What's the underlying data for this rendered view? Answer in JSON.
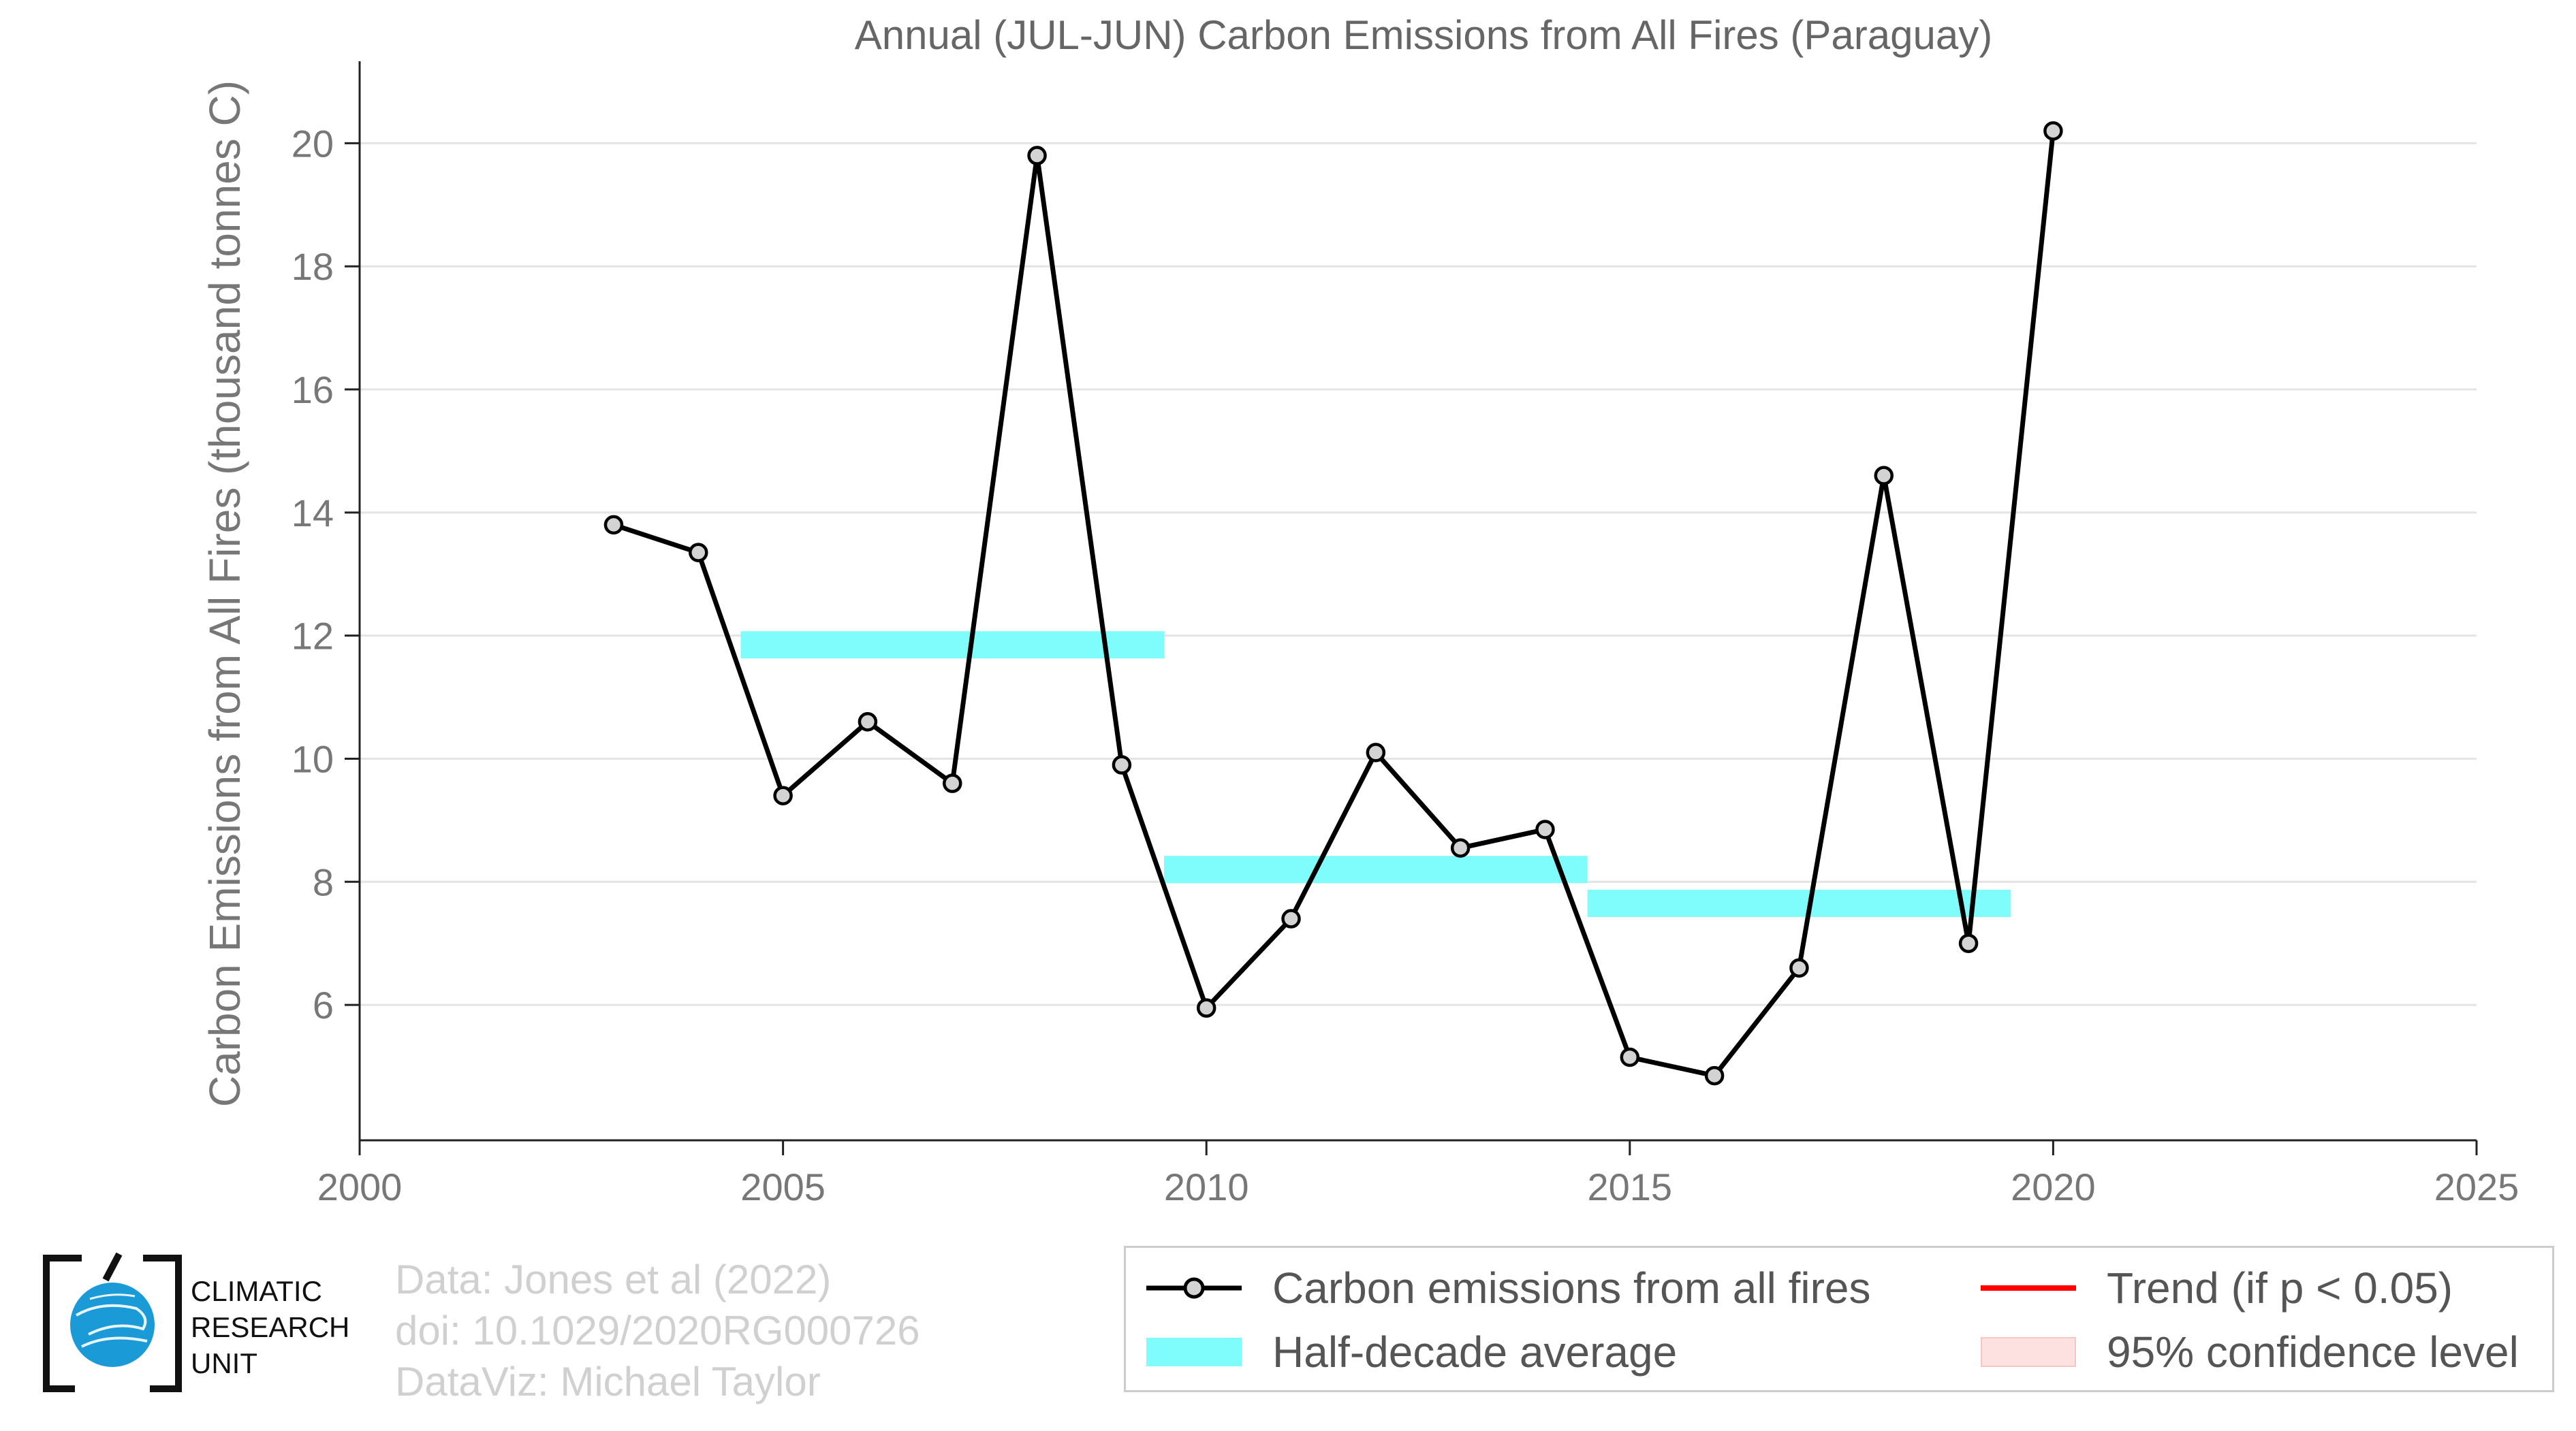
{
  "chart_data": {
    "type": "line",
    "title": "Annual (JUL-JUN) Carbon Emissions from All Fires (Paraguay)",
    "xlabel": "",
    "ylabel": "Carbon Emissions from All Fires (thousand tonnes C)",
    "xlim": [
      2000,
      2025
    ],
    "ylim": [
      3.8,
      21
    ],
    "xticks": [
      2000,
      2005,
      2010,
      2015,
      2020,
      2025
    ],
    "yticks": [
      6,
      8,
      10,
      12,
      14,
      16,
      18,
      20
    ],
    "grid": "horizontal",
    "series": [
      {
        "name": "Carbon emissions from all fires",
        "color": "#000000",
        "marker_color": "#d3d3d3",
        "x": [
          2003,
          2004,
          2005,
          2006,
          2007,
          2008,
          2009,
          2010,
          2011,
          2012,
          2013,
          2014,
          2015,
          2016,
          2017,
          2018,
          2019,
          2020
        ],
        "y": [
          13.8,
          13.35,
          9.4,
          10.6,
          9.6,
          19.8,
          9.9,
          5.95,
          7.4,
          10.1,
          8.55,
          8.85,
          5.15,
          4.85,
          6.6,
          14.6,
          7.0,
          20.2
        ]
      }
    ],
    "half_decade_average": {
      "name": "Half-decade average",
      "color": "#7ffcfc",
      "segments": [
        {
          "x0": 2004.5,
          "x1": 2009.5,
          "y": 11.85
        },
        {
          "x0": 2009.5,
          "x1": 2014.5,
          "y": 8.2
        },
        {
          "x0": 2014.5,
          "x1": 2019.5,
          "y": 7.65
        }
      ]
    },
    "legend": {
      "placement": "bottom-right",
      "entries": [
        {
          "label": "Carbon emissions from all fires",
          "color": "#000000"
        },
        {
          "label": "Trend (if p < 0.05)",
          "color": "#ff0000"
        },
        {
          "label": "Half-decade average",
          "color": "#7ffcfc"
        },
        {
          "label": "95% confidence level",
          "color": "#fde0e0"
        }
      ]
    }
  },
  "footer": {
    "line1": "Data: Jones et al (2022)",
    "line2": "doi: 10.1029/2020RG000726",
    "line3": "DataViz: Michael Taylor"
  },
  "logo": {
    "line1": "CLIMATIC",
    "line2": "RESEARCH",
    "line3": "UNIT",
    "globe_color": "#1a9ad6"
  }
}
